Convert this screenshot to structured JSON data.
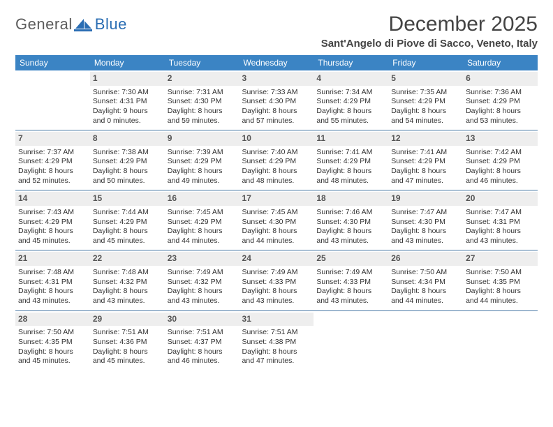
{
  "logo": {
    "left": "General",
    "right": "Blue",
    "left_color": "#6d6d6d",
    "right_color": "#2a6db3",
    "mark_color": "#2a6db3"
  },
  "title": "December 2025",
  "location": "Sant'Angelo di Piove di Sacco, Veneto, Italy",
  "header_bg": "#3b84c4",
  "header_fg": "#ffffff",
  "daynum_bg": "#eeeeee",
  "weeksep_color": "#4a7aa6",
  "weekdays": [
    "Sunday",
    "Monday",
    "Tuesday",
    "Wednesday",
    "Thursday",
    "Friday",
    "Saturday"
  ],
  "cells": [
    [
      null,
      {
        "n": "1",
        "sr": "7:30 AM",
        "ss": "4:31 PM",
        "dl": "9 hours and 0 minutes."
      },
      {
        "n": "2",
        "sr": "7:31 AM",
        "ss": "4:30 PM",
        "dl": "8 hours and 59 minutes."
      },
      {
        "n": "3",
        "sr": "7:33 AM",
        "ss": "4:30 PM",
        "dl": "8 hours and 57 minutes."
      },
      {
        "n": "4",
        "sr": "7:34 AM",
        "ss": "4:29 PM",
        "dl": "8 hours and 55 minutes."
      },
      {
        "n": "5",
        "sr": "7:35 AM",
        "ss": "4:29 PM",
        "dl": "8 hours and 54 minutes."
      },
      {
        "n": "6",
        "sr": "7:36 AM",
        "ss": "4:29 PM",
        "dl": "8 hours and 53 minutes."
      }
    ],
    [
      {
        "n": "7",
        "sr": "7:37 AM",
        "ss": "4:29 PM",
        "dl": "8 hours and 52 minutes."
      },
      {
        "n": "8",
        "sr": "7:38 AM",
        "ss": "4:29 PM",
        "dl": "8 hours and 50 minutes."
      },
      {
        "n": "9",
        "sr": "7:39 AM",
        "ss": "4:29 PM",
        "dl": "8 hours and 49 minutes."
      },
      {
        "n": "10",
        "sr": "7:40 AM",
        "ss": "4:29 PM",
        "dl": "8 hours and 48 minutes."
      },
      {
        "n": "11",
        "sr": "7:41 AM",
        "ss": "4:29 PM",
        "dl": "8 hours and 48 minutes."
      },
      {
        "n": "12",
        "sr": "7:41 AM",
        "ss": "4:29 PM",
        "dl": "8 hours and 47 minutes."
      },
      {
        "n": "13",
        "sr": "7:42 AM",
        "ss": "4:29 PM",
        "dl": "8 hours and 46 minutes."
      }
    ],
    [
      {
        "n": "14",
        "sr": "7:43 AM",
        "ss": "4:29 PM",
        "dl": "8 hours and 45 minutes."
      },
      {
        "n": "15",
        "sr": "7:44 AM",
        "ss": "4:29 PM",
        "dl": "8 hours and 45 minutes."
      },
      {
        "n": "16",
        "sr": "7:45 AM",
        "ss": "4:29 PM",
        "dl": "8 hours and 44 minutes."
      },
      {
        "n": "17",
        "sr": "7:45 AM",
        "ss": "4:30 PM",
        "dl": "8 hours and 44 minutes."
      },
      {
        "n": "18",
        "sr": "7:46 AM",
        "ss": "4:30 PM",
        "dl": "8 hours and 43 minutes."
      },
      {
        "n": "19",
        "sr": "7:47 AM",
        "ss": "4:30 PM",
        "dl": "8 hours and 43 minutes."
      },
      {
        "n": "20",
        "sr": "7:47 AM",
        "ss": "4:31 PM",
        "dl": "8 hours and 43 minutes."
      }
    ],
    [
      {
        "n": "21",
        "sr": "7:48 AM",
        "ss": "4:31 PM",
        "dl": "8 hours and 43 minutes."
      },
      {
        "n": "22",
        "sr": "7:48 AM",
        "ss": "4:32 PM",
        "dl": "8 hours and 43 minutes."
      },
      {
        "n": "23",
        "sr": "7:49 AM",
        "ss": "4:32 PM",
        "dl": "8 hours and 43 minutes."
      },
      {
        "n": "24",
        "sr": "7:49 AM",
        "ss": "4:33 PM",
        "dl": "8 hours and 43 minutes."
      },
      {
        "n": "25",
        "sr": "7:49 AM",
        "ss": "4:33 PM",
        "dl": "8 hours and 43 minutes."
      },
      {
        "n": "26",
        "sr": "7:50 AM",
        "ss": "4:34 PM",
        "dl": "8 hours and 44 minutes."
      },
      {
        "n": "27",
        "sr": "7:50 AM",
        "ss": "4:35 PM",
        "dl": "8 hours and 44 minutes."
      }
    ],
    [
      {
        "n": "28",
        "sr": "7:50 AM",
        "ss": "4:35 PM",
        "dl": "8 hours and 45 minutes."
      },
      {
        "n": "29",
        "sr": "7:51 AM",
        "ss": "4:36 PM",
        "dl": "8 hours and 45 minutes."
      },
      {
        "n": "30",
        "sr": "7:51 AM",
        "ss": "4:37 PM",
        "dl": "8 hours and 46 minutes."
      },
      {
        "n": "31",
        "sr": "7:51 AM",
        "ss": "4:38 PM",
        "dl": "8 hours and 47 minutes."
      },
      null,
      null,
      null
    ]
  ],
  "labels": {
    "sunrise": "Sunrise:",
    "sunset": "Sunset:",
    "daylight": "Daylight:"
  }
}
